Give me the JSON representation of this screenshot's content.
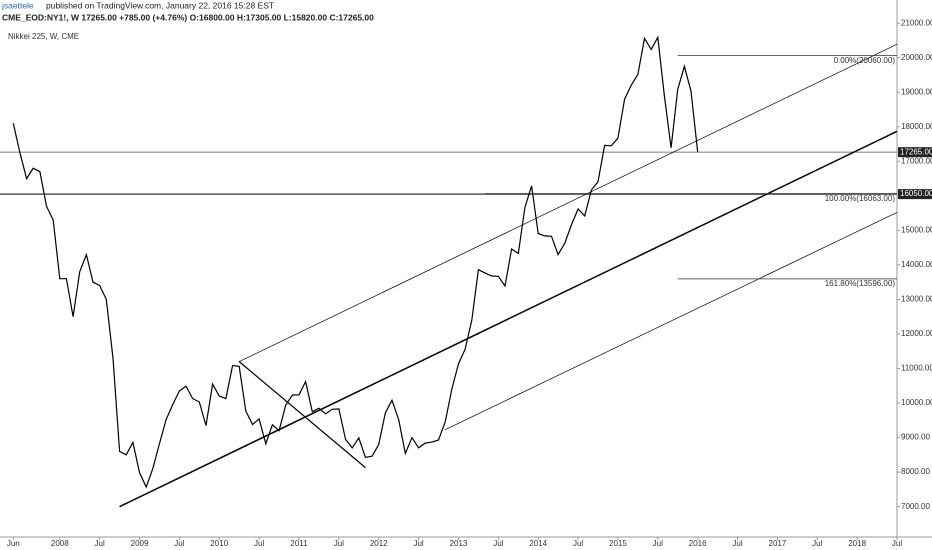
{
  "header": {
    "author": "jsaettele",
    "published": "published on TradingView.com, January 22, 2016 15:28 EST",
    "quote": "CME_EOD:NY1!, W  17265.00 +785.00 (+4.76%)  O:16800.00  H:17305.00  L:15820.00  C:17265.00"
  },
  "chart_data": {
    "type": "line",
    "title": "Nikkei 225, W, CME",
    "color": "#000000",
    "x": [
      "2007-06",
      "2007-07",
      "2007-08",
      "2007-09",
      "2007-10",
      "2007-11",
      "2007-12",
      "2008-01",
      "2008-02",
      "2008-03",
      "2008-04",
      "2008-05",
      "2008-06",
      "2008-07",
      "2008-08",
      "2008-09",
      "2008-10",
      "2008-11",
      "2008-12",
      "2009-01",
      "2009-02",
      "2009-03",
      "2009-04",
      "2009-05",
      "2009-06",
      "2009-07",
      "2009-08",
      "2009-09",
      "2009-10",
      "2009-11",
      "2009-12",
      "2010-01",
      "2010-02",
      "2010-03",
      "2010-04",
      "2010-05",
      "2010-06",
      "2010-07",
      "2010-08",
      "2010-09",
      "2010-10",
      "2010-11",
      "2010-12",
      "2011-01",
      "2011-02",
      "2011-03",
      "2011-04",
      "2011-05",
      "2011-06",
      "2011-07",
      "2011-08",
      "2011-09",
      "2011-10",
      "2011-11",
      "2011-12",
      "2012-01",
      "2012-02",
      "2012-03",
      "2012-04",
      "2012-05",
      "2012-06",
      "2012-07",
      "2012-08",
      "2012-09",
      "2012-10",
      "2012-11",
      "2012-12",
      "2013-01",
      "2013-02",
      "2013-03",
      "2013-04",
      "2013-05",
      "2013-06",
      "2013-07",
      "2013-08",
      "2013-09",
      "2013-10",
      "2013-11",
      "2013-12",
      "2014-01",
      "2014-02",
      "2014-03",
      "2014-04",
      "2014-05",
      "2014-06",
      "2014-07",
      "2014-08",
      "2014-09",
      "2014-10",
      "2014-11",
      "2014-12",
      "2015-01",
      "2015-02",
      "2015-03",
      "2015-04",
      "2015-05",
      "2015-06",
      "2015-07",
      "2015-08",
      "2015-09",
      "2015-10",
      "2015-11",
      "2015-12",
      "2016-01"
    ],
    "values": [
      18100,
      17250,
      16500,
      16800,
      16700,
      15700,
      15300,
      13600,
      13600,
      12500,
      13800,
      14300,
      13500,
      13400,
      13000,
      11300,
      8600,
      8500,
      8860,
      7990,
      7570,
      8100,
      8830,
      9520,
      9960,
      10350,
      10490,
      10130,
      10030,
      9350,
      10550,
      10200,
      10130,
      11090,
      11060,
      9770,
      9380,
      9540,
      8820,
      9370,
      9200,
      9940,
      10230,
      10240,
      10620,
      9750,
      9850,
      9690,
      9820,
      9830,
      8950,
      8700,
      8990,
      8430,
      8460,
      8800,
      9720,
      10080,
      9520,
      8540,
      9000,
      8700,
      8840,
      8870,
      8930,
      9450,
      10400,
      11140,
      11560,
      12400,
      13860,
      13770,
      13680,
      13670,
      13390,
      14460,
      14330,
      15660,
      16290,
      14910,
      14840,
      14830,
      14300,
      14630,
      15160,
      15620,
      15420,
      16170,
      16410,
      17460,
      17450,
      17670,
      18800,
      19200,
      19520,
      20560,
      20240,
      20590,
      18890,
      17390,
      19080,
      19750,
      19030,
      17265
    ],
    "xlim": [
      "2007-04",
      "2018-07"
    ],
    "xticks": [
      {
        "value": "2007-06",
        "label": "Jun"
      },
      {
        "value": "2008-01",
        "label": "2008"
      },
      {
        "value": "2008-07",
        "label": "Jul"
      },
      {
        "value": "2009-01",
        "label": "2009"
      },
      {
        "value": "2009-07",
        "label": "Jul"
      },
      {
        "value": "2010-01",
        "label": "2010"
      },
      {
        "value": "2010-07",
        "label": "Jul"
      },
      {
        "value": "2011-01",
        "label": "2011"
      },
      {
        "value": "2011-07",
        "label": "Jul"
      },
      {
        "value": "2012-01",
        "label": "2012"
      },
      {
        "value": "2012-07",
        "label": "Jul"
      },
      {
        "value": "2013-01",
        "label": "2013"
      },
      {
        "value": "2013-07",
        "label": "Jul"
      },
      {
        "value": "2014-01",
        "label": "2014"
      },
      {
        "value": "2014-07",
        "label": "Jul"
      },
      {
        "value": "2015-01",
        "label": "2015"
      },
      {
        "value": "2015-07",
        "label": "Jul"
      },
      {
        "value": "2016-01",
        "label": "2016"
      },
      {
        "value": "2016-07",
        "label": "Jul"
      },
      {
        "value": "2017-01",
        "label": "2017"
      },
      {
        "value": "2017-07",
        "label": "Jul"
      },
      {
        "value": "2018-01",
        "label": "2018"
      },
      {
        "value": "2018-07",
        "label": "Jul"
      }
    ],
    "ylim": [
      6150,
      21150
    ],
    "yticks": [
      {
        "value": 7000,
        "label": "7000.00"
      },
      {
        "value": 8000,
        "label": "8000.00"
      },
      {
        "value": 9000,
        "label": "9000.00"
      },
      {
        "value": 10000,
        "label": "10000.00"
      },
      {
        "value": 11000,
        "label": "11000.00"
      },
      {
        "value": 12000,
        "label": "12000.00"
      },
      {
        "value": 13000,
        "label": "13000.00"
      },
      {
        "value": 14000,
        "label": "14000.00"
      },
      {
        "value": 15000,
        "label": "15000.00"
      },
      {
        "value": 16000,
        "label": "16000.00"
      },
      {
        "value": 17000,
        "label": "17000.00"
      },
      {
        "value": 18000,
        "label": "18000.00"
      },
      {
        "value": 19000,
        "label": "19000.00"
      },
      {
        "value": 20000,
        "label": "20000.00"
      },
      {
        "value": 21000,
        "label": "21000.00"
      }
    ],
    "trendlines": [
      {
        "x": [
          "2008-10",
          "2018-07"
        ],
        "y": [
          7000,
          17870
        ],
        "width": 1.5
      },
      {
        "x": [
          "2010-04",
          "2018-07"
        ],
        "y": [
          11200,
          20390
        ],
        "width": 0.7
      },
      {
        "x": [
          "2012-11",
          "2018-07"
        ],
        "y": [
          9230,
          15520
        ],
        "width": 0.7
      },
      {
        "x": [
          "2010-04",
          "2011-11"
        ],
        "y": [
          11200,
          8130
        ],
        "width": 1.2
      }
    ],
    "fib_levels": [
      {
        "value": 20060,
        "label": "0.00%(20060.00)",
        "x": [
          "2015-10",
          "2018-07"
        ]
      },
      {
        "value": 16063,
        "label": "100.00%(16063.00)",
        "x": [
          "2013-05",
          "2018-07"
        ]
      },
      {
        "value": 13596,
        "label": "161.80%(13596.00)",
        "x": [
          "2015-10",
          "2018-07"
        ]
      }
    ],
    "price_labels": [
      {
        "value": 17265,
        "label": "17265.00"
      },
      {
        "value": 16050,
        "label": "16050.00"
      }
    ]
  }
}
